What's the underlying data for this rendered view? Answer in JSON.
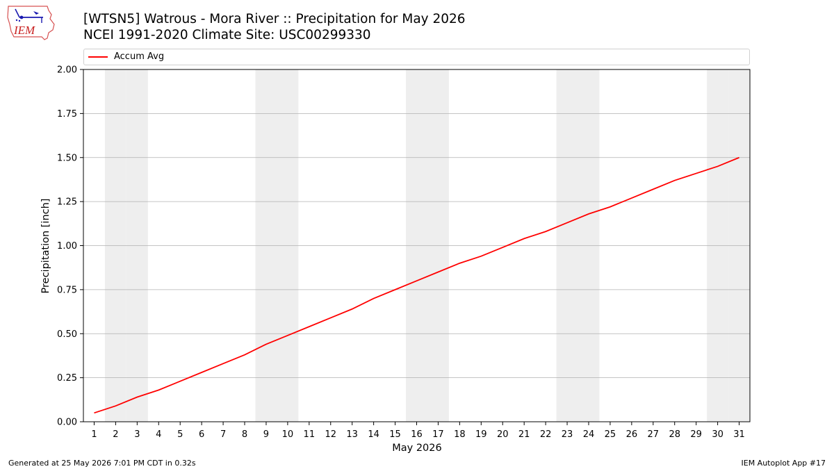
{
  "header": {
    "logo_text": "IEM",
    "title_line1": "[WTSN5] Watrous - Mora River :: Precipitation for May 2026",
    "title_line2": "NCEI 1991-2020 Climate Site: USC00299330"
  },
  "footer": {
    "generated": "Generated at 25 May 2026 7:01 PM CDT in 0.32s",
    "app": "IEM Autoplot App #17"
  },
  "colors": {
    "line": "#ff0000",
    "weekend_band": "#eeeeee",
    "grid": "#b0b0b0"
  },
  "chart_data": {
    "type": "line",
    "xlabel": "May 2026",
    "ylabel": "Precipitation [inch]",
    "xlim": [
      0.5,
      31.5
    ],
    "ylim": [
      0,
      2.0
    ],
    "y_ticks": [
      "0.00",
      "0.25",
      "0.50",
      "0.75",
      "1.00",
      "1.25",
      "1.50",
      "1.75",
      "2.00"
    ],
    "x": [
      1,
      2,
      3,
      4,
      5,
      6,
      7,
      8,
      9,
      10,
      11,
      12,
      13,
      14,
      15,
      16,
      17,
      18,
      19,
      20,
      21,
      22,
      23,
      24,
      25,
      26,
      27,
      28,
      29,
      30,
      31
    ],
    "x_tick_labels": [
      "1",
      "2",
      "3",
      "4",
      "5",
      "6",
      "7",
      "8",
      "9",
      "10",
      "11",
      "12",
      "13",
      "14",
      "15",
      "16",
      "17",
      "18",
      "19",
      "20",
      "21",
      "22",
      "23",
      "24",
      "25",
      "26",
      "27",
      "28",
      "29",
      "30",
      "31"
    ],
    "weekend_days": [
      2,
      3,
      9,
      10,
      16,
      17,
      23,
      24,
      30,
      31
    ],
    "grid": "horizontal",
    "legend_position": "top",
    "series": [
      {
        "name": "Accum Avg",
        "values": [
          0.05,
          0.09,
          0.14,
          0.18,
          0.23,
          0.28,
          0.33,
          0.38,
          0.44,
          0.49,
          0.54,
          0.59,
          0.64,
          0.7,
          0.75,
          0.8,
          0.85,
          0.9,
          0.94,
          0.99,
          1.04,
          1.08,
          1.13,
          1.18,
          1.22,
          1.27,
          1.32,
          1.37,
          1.41,
          1.45,
          1.5
        ]
      }
    ]
  }
}
